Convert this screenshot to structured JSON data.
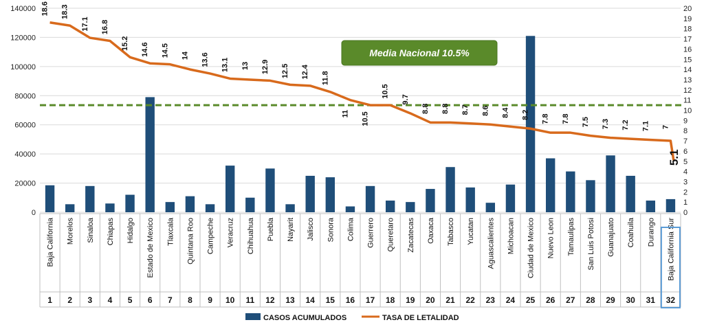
{
  "chart_data": {
    "type": "bar",
    "categories": [
      "Baja California",
      "Morelos",
      "Sinaloa",
      "Chiapas",
      "Hidalgo",
      "Estado de Mexico",
      "Tlaxcala",
      "Quintana Roo",
      "Campeche",
      "Veracruz",
      "Chihuahua",
      "Puebla",
      "Nayarit",
      "Jalisco",
      "Sonora",
      "Colima",
      "Guerrero",
      "Queretaro",
      "Zacatecas",
      "Oaxaca",
      "Tabasco",
      "Yucatan",
      "Aguascalientes",
      "Michoacan",
      "Ciudad de Mexico",
      "Nuevo Leon",
      "Tamaulipas",
      "San Luis Potosi",
      "Guanajuato",
      "Coahuila",
      "Durango",
      "Baja California Sur"
    ],
    "indices": [
      "1",
      "2",
      "3",
      "4",
      "5",
      "6",
      "7",
      "8",
      "9",
      "10",
      "11",
      "12",
      "13",
      "14",
      "15",
      "16",
      "17",
      "18",
      "19",
      "20",
      "21",
      "22",
      "23",
      "24",
      "25",
      "26",
      "27",
      "28",
      "29",
      "30",
      "31",
      "32"
    ],
    "series": [
      {
        "name": "CASOS ACUMULADOS",
        "axis": "left",
        "color": "#1f4e79",
        "values": [
          18500,
          5500,
          18000,
          6000,
          12000,
          79000,
          7000,
          11000,
          5500,
          32000,
          10000,
          30000,
          5500,
          25000,
          24000,
          4000,
          18000,
          8000,
          7000,
          16000,
          31000,
          17000,
          6500,
          19000,
          121000,
          37000,
          28000,
          22000,
          39000,
          25000,
          8000,
          9000
        ]
      },
      {
        "name": "TASA  DE LETALIDAD",
        "axis": "right",
        "color": "#d86a1c",
        "values": [
          18.6,
          18.3,
          17.1,
          16.8,
          15.2,
          14.6,
          14.5,
          14,
          13.6,
          13.1,
          13,
          12.9,
          12.5,
          12.4,
          11.8,
          11,
          10.5,
          10.5,
          9.7,
          8.8,
          8.8,
          8.7,
          8.6,
          8.4,
          8.2,
          7.8,
          7.8,
          7.5,
          7.3,
          7.2,
          7.1,
          7
        ],
        "labels": [
          "18.6",
          "18.3",
          "17.1",
          "16.8",
          "15.2",
          "14.6",
          "14.5",
          "14",
          "13.6",
          "13.1",
          "13",
          "12.9",
          "12.5",
          "12.4",
          "11.8",
          "11",
          "10.5",
          "10.5",
          "9.7",
          "8.8",
          "8.8",
          "8.7",
          "8.6",
          "8.4",
          "8.2",
          "7.8",
          "7.8",
          "7.5",
          "7.3",
          "7.2",
          "7.1",
          "7"
        ]
      }
    ],
    "reference_line": {
      "value": 10.5,
      "axis": "right",
      "color": "#5a8a2a",
      "label": "Media Nacional  10.5%"
    },
    "last_point": {
      "value": 5.1,
      "label": "5.1"
    },
    "ylim_left": [
      0,
      140000
    ],
    "yticks_left": [
      "0",
      "20000",
      "40000",
      "60000",
      "80000",
      "100000",
      "120000",
      "140000"
    ],
    "ylim_right": [
      0,
      20
    ],
    "yticks_right": [
      "0",
      "1",
      "2",
      "3",
      "4",
      "5",
      "6",
      "7",
      "8",
      "9",
      "10",
      "11",
      "12",
      "13",
      "14",
      "15",
      "16",
      "17",
      "18",
      "19",
      "20"
    ],
    "grid": true,
    "legend_position": "bottom",
    "highlighted_category_index": 32
  }
}
